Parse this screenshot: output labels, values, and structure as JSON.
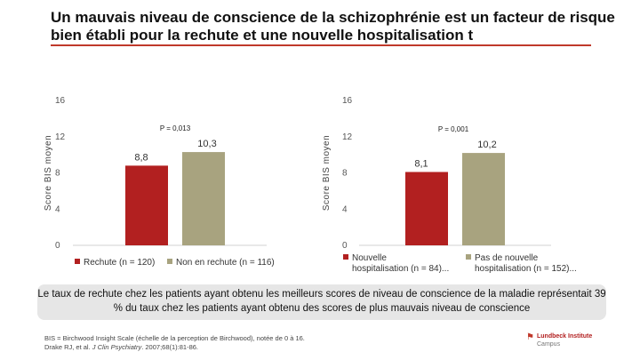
{
  "slide": {
    "title": "Un mauvais niveau de conscience de la schizophrénie est un facteur de risque bien établi pour la rechute et une nouvelle hospitalisation t",
    "callout": "Le taux de rechute chez les patients ayant obtenu les meilleurs scores de niveau de conscience de la maladie représentait 39 % du taux chez les patients ayant obtenu des scores de plus mauvais niveau de conscience",
    "footnote_line1": "BIS = Birchwood Insight Scale (échelle de la perception de Birchwood), notée de 0 à 16.",
    "footnote_line2_authors": "Drake RJ, et al.",
    "footnote_line2_journal": "J Clin Psychiatry",
    "footnote_line2_rest": ". 2007;68(1):81-86.",
    "logo_line1": "Lundbeck Institute",
    "logo_line2": "Campus",
    "logo_icon": "lundbeck-logo-icon"
  },
  "colors": {
    "series1": "#b22020",
    "series2": "#a8a37f",
    "rule": "#c0392b"
  },
  "chart_data": [
    {
      "type": "bar",
      "ylabel": "Score BIS moyen",
      "ylim": [
        0,
        16
      ],
      "yticks": [
        "0",
        "4",
        "8",
        "12",
        "16"
      ],
      "p_value": "P = 0,013",
      "series": [
        {
          "name": "Rechute (n = 120)",
          "value": 8.8,
          "label": "8,8"
        },
        {
          "name": "Non en rechute (n = 116)",
          "value": 10.3,
          "label": "10,3"
        }
      ]
    },
    {
      "type": "bar",
      "ylabel": "Score BIS moyen",
      "ylim": [
        0,
        16
      ],
      "yticks": [
        "0",
        "4",
        "8",
        "12",
        "16"
      ],
      "p_value": "P = 0,001",
      "series": [
        {
          "name": "Nouvelle hospitalisation (n = 84)...",
          "legend_line1": "Nouvelle",
          "legend_line2": "hospitalisation (n = 84)...",
          "value": 8.1,
          "label": "8,1"
        },
        {
          "name": "Pas de nouvelle hospitalisation (n = 152)...",
          "legend_line1": "Pas de nouvelle",
          "legend_line2": "hospitalisation (n = 152)...",
          "value": 10.2,
          "label": "10,2"
        }
      ]
    }
  ]
}
